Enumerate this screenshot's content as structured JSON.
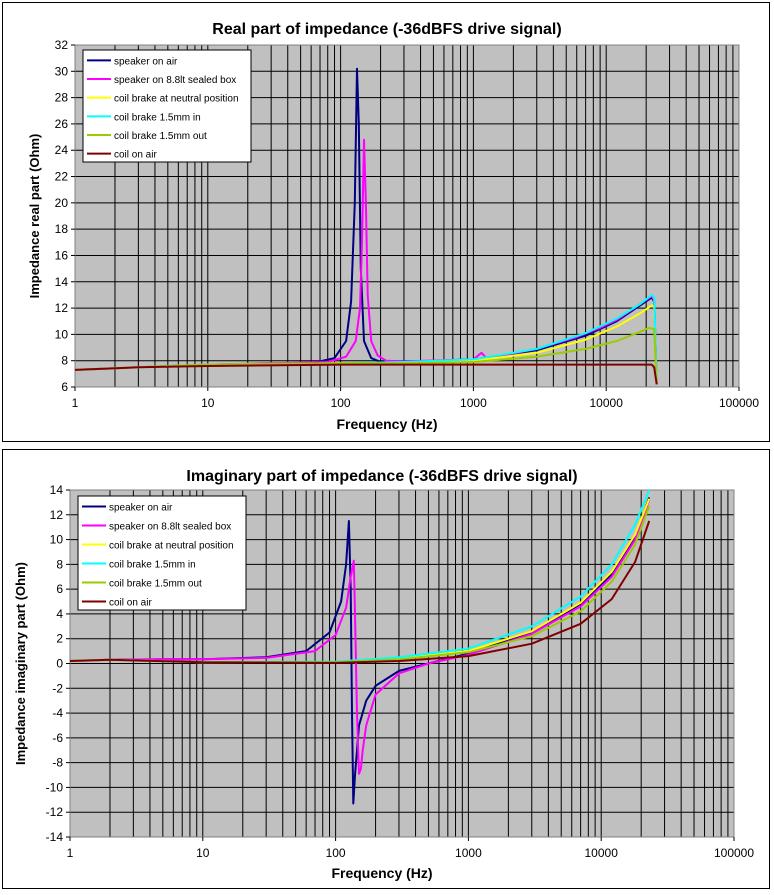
{
  "chart_data": [
    {
      "type": "line",
      "title": "Real part of impedance (-36dBFS drive signal)",
      "xlabel": "Frequency (Hz)",
      "ylabel": "Impedance real part (Ohm)",
      "xscale": "log",
      "xlim": [
        1,
        100000
      ],
      "ylim": [
        6,
        32
      ],
      "xticks": [
        1,
        10,
        100,
        1000,
        10000,
        100000
      ],
      "xtick_labels": [
        "1",
        "10",
        "100",
        "1000",
        "10000",
        "100000"
      ],
      "yticks": [
        6,
        8,
        10,
        12,
        14,
        16,
        18,
        20,
        22,
        24,
        26,
        28,
        30,
        32
      ],
      "grid": true,
      "legend_position": "top-left",
      "plot_background": "#c0c0c0",
      "series": [
        {
          "name": "speaker on air",
          "color": "#000080",
          "x": [
            1,
            3,
            10,
            30,
            60,
            90,
            110,
            120,
            128,
            133,
            137,
            142,
            150,
            170,
            200,
            300,
            1000,
            3000,
            7000,
            12000,
            18000,
            22000,
            23000,
            24000
          ],
          "y": [
            7.3,
            7.5,
            7.7,
            7.75,
            7.8,
            8.2,
            9.5,
            12.5,
            20,
            30.2,
            26,
            15,
            9.5,
            8.2,
            7.9,
            7.9,
            8.1,
            8.8,
            9.9,
            11,
            12.2,
            12.8,
            12.5,
            6.2
          ]
        },
        {
          "name": "speaker on 8.8lt sealed box",
          "color": "#ff00ff",
          "x": [
            1,
            3,
            10,
            30,
            80,
            110,
            130,
            140,
            145,
            150,
            155,
            160,
            170,
            190,
            220,
            300,
            1000,
            1150,
            1250,
            1500,
            3000,
            6000,
            9000,
            12000,
            18000,
            22000,
            23000,
            24000
          ],
          "y": [
            7.3,
            7.5,
            7.7,
            7.8,
            7.9,
            8.3,
            9.5,
            12,
            17,
            24.8,
            20,
            13,
            9.5,
            8.4,
            8.0,
            7.95,
            8.1,
            8.6,
            8.2,
            8.3,
            8.9,
            9.8,
            10.5,
            11.1,
            12.3,
            12.9,
            12.6,
            6.2
          ]
        },
        {
          "name": "coil brake at neutral position",
          "color": "#ffff00",
          "x": [
            1,
            3,
            10,
            100,
            300,
            1000,
            3000,
            7000,
            12000,
            18000,
            22000,
            23000,
            24000
          ],
          "y": [
            7.3,
            7.5,
            7.7,
            7.8,
            7.85,
            8.0,
            8.6,
            9.6,
            10.6,
            11.6,
            12.2,
            12.1,
            6.2
          ]
        },
        {
          "name": "coil brake 1.5mm in",
          "color": "#00ffff",
          "x": [
            1,
            3,
            10,
            100,
            300,
            1000,
            3000,
            7000,
            12000,
            18000,
            22000,
            23000,
            24000
          ],
          "y": [
            7.3,
            7.5,
            7.7,
            7.8,
            7.9,
            8.1,
            8.9,
            10.1,
            11.2,
            12.3,
            13.0,
            12.8,
            6.2
          ]
        },
        {
          "name": "coil brake 1.5mm out",
          "color": "#99cc00",
          "x": [
            1,
            3,
            10,
            100,
            300,
            1000,
            3000,
            7000,
            12000,
            18000,
            21000,
            23000,
            24000
          ],
          "y": [
            7.3,
            7.5,
            7.7,
            7.8,
            7.8,
            7.9,
            8.3,
            8.9,
            9.5,
            10.2,
            10.5,
            10.4,
            6.2
          ]
        },
        {
          "name": "coil on air",
          "color": "#800000",
          "x": [
            1,
            3,
            10,
            100,
            1000,
            10000,
            22000,
            23000,
            24000
          ],
          "y": [
            7.3,
            7.5,
            7.6,
            7.7,
            7.7,
            7.7,
            7.7,
            7.5,
            6.2
          ]
        }
      ]
    },
    {
      "type": "line",
      "title": "Imaginary part of impedance (-36dBFS drive signal)",
      "xlabel": "Frequency (Hz)",
      "ylabel": "Impedance imaginary part (Ohm)",
      "xscale": "log",
      "xlim": [
        1,
        100000
      ],
      "ylim": [
        -14,
        14
      ],
      "xticks": [
        1,
        10,
        100,
        1000,
        10000,
        100000
      ],
      "xtick_labels": [
        "1",
        "10",
        "100",
        "1000",
        "10000",
        "100000"
      ],
      "yticks": [
        -14,
        -12,
        -10,
        -8,
        -6,
        -4,
        -2,
        0,
        2,
        4,
        6,
        8,
        10,
        12,
        14
      ],
      "grid": true,
      "legend_position": "top-left",
      "plot_background": "#c0c0c0",
      "series": [
        {
          "name": "speaker on air",
          "color": "#000080",
          "x": [
            1,
            2,
            5,
            10,
            30,
            60,
            90,
            110,
            120,
            126,
            130,
            133,
            136,
            140,
            150,
            170,
            200,
            300,
            500,
            1000,
            3000,
            7000,
            12000,
            18000,
            23000
          ],
          "y": [
            0.2,
            0.3,
            0.35,
            0.35,
            0.5,
            1.0,
            2.5,
            5.0,
            8.0,
            11.5,
            6,
            -4,
            -11.3,
            -9,
            -5,
            -3,
            -1.8,
            -0.6,
            0,
            0.8,
            2.5,
            4.8,
            7.2,
            10.2,
            13.4
          ]
        },
        {
          "name": "speaker on 8.8lt sealed box",
          "color": "#ff00ff",
          "x": [
            1,
            2,
            5,
            10,
            30,
            70,
            100,
            120,
            130,
            137,
            140,
            145,
            150,
            155,
            160,
            170,
            200,
            300,
            500,
            1000,
            3000,
            7000,
            12000,
            18000,
            23000
          ],
          "y": [
            0.2,
            0.3,
            0.35,
            0.35,
            0.45,
            1.0,
            2.3,
            4.5,
            7.0,
            8.3,
            4,
            -4,
            -8.9,
            -8.5,
            -7,
            -5,
            -2.5,
            -0.8,
            0,
            0.7,
            2.4,
            4.6,
            7.0,
            10.0,
            13.2
          ]
        },
        {
          "name": "coil brake at neutral position",
          "color": "#ffff00",
          "x": [
            1,
            2,
            10,
            100,
            300,
            1000,
            3000,
            7000,
            12000,
            18000,
            23000
          ],
          "y": [
            0.2,
            0.3,
            0.1,
            0.1,
            0.4,
            1.0,
            2.6,
            4.9,
            7.4,
            10.4,
            13.3
          ]
        },
        {
          "name": "coil brake 1.5mm in",
          "color": "#00ffff",
          "x": [
            1,
            2,
            10,
            100,
            300,
            1000,
            3000,
            7000,
            12000,
            18000,
            23000
          ],
          "y": [
            0.2,
            0.3,
            0.1,
            0.15,
            0.5,
            1.2,
            3.0,
            5.4,
            8.0,
            11.2,
            14.0
          ]
        },
        {
          "name": "coil brake 1.5mm out",
          "color": "#99cc00",
          "x": [
            1,
            2,
            10,
            100,
            300,
            1000,
            3000,
            7000,
            12000,
            18000,
            23000
          ],
          "y": [
            0.2,
            0.3,
            0.1,
            0.1,
            0.35,
            0.9,
            2.2,
            4.2,
            6.6,
            9.6,
            12.7
          ]
        },
        {
          "name": "coil on air",
          "color": "#800000",
          "x": [
            1,
            2,
            10,
            100,
            300,
            1000,
            3000,
            7000,
            12000,
            18000,
            23000
          ],
          "y": [
            0.2,
            0.3,
            0.1,
            0.05,
            0.2,
            0.6,
            1.6,
            3.2,
            5.2,
            8.2,
            11.5
          ]
        }
      ]
    }
  ]
}
